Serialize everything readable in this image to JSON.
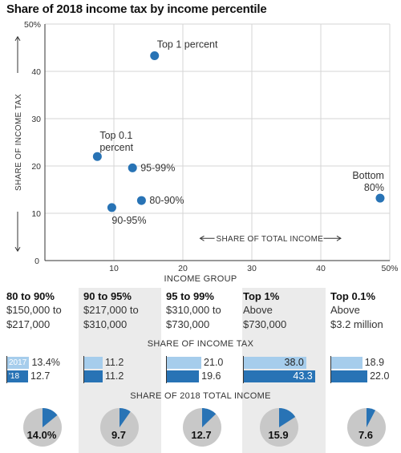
{
  "title": "Share of 2018 income tax by income percentile",
  "chart_data": {
    "type": "scatter",
    "x_axis": {
      "label": "SHARE OF TOTAL INCOME",
      "range": [
        0,
        50
      ],
      "ticks": [
        "0",
        "10",
        "20",
        "30",
        "40",
        "50%"
      ]
    },
    "y_axis": {
      "label": "SHARE OF INCOME TAX",
      "range": [
        0,
        50
      ],
      "ticks": [
        "10",
        "20",
        "30",
        "40",
        "50%"
      ],
      "zero_label": "0"
    },
    "points": [
      {
        "label": "Top 1 percent",
        "x": 15.9,
        "y": 43.3
      },
      {
        "label": "Top 0.1 percent",
        "x": 7.6,
        "y": 22.0
      },
      {
        "label": "95-99%",
        "x": 12.7,
        "y": 19.6
      },
      {
        "label": "80-90%",
        "x": 14.0,
        "y": 12.7
      },
      {
        "label": "90-95%",
        "x": 9.7,
        "y": 11.2
      },
      {
        "label": "Bottom 80%",
        "x": 48.6,
        "y": 13.2
      }
    ],
    "point_color": "#2873b5",
    "grid": "vertical-and-horizontal"
  },
  "income_group": {
    "heading": "INCOME GROUP",
    "tax_heading": "SHARE OF INCOME TAX",
    "income_heading": "SHARE OF 2018 TOTAL INCOME",
    "year_labels": [
      "2017",
      "'18"
    ],
    "colors": {
      "2017": "#a6cdec",
      "2018": "#2873b5",
      "pie_base": "#c8c8c8"
    },
    "groups": [
      {
        "name": "80 to 90%",
        "range_line1": "$150,000 to",
        "range_line2": "$217,000",
        "tax_2017": "13.4%",
        "tax_2018": "12.7",
        "tax_2017_value": 13.4,
        "tax_2018_value": 12.7,
        "income_share": "14.0%",
        "income_value": 14.0,
        "shaded": false
      },
      {
        "name": "90 to 95%",
        "range_line1": "$217,000 to",
        "range_line2": "$310,000",
        "tax_2017": "11.2",
        "tax_2018": "11.2",
        "tax_2017_value": 11.2,
        "tax_2018_value": 11.2,
        "income_share": "9.7",
        "income_value": 9.7,
        "shaded": true
      },
      {
        "name": "95 to 99%",
        "range_line1": "$310,000 to",
        "range_line2": "$730,000",
        "tax_2017": "21.0",
        "tax_2018": "19.6",
        "tax_2017_value": 21.0,
        "tax_2018_value": 19.6,
        "income_share": "12.7",
        "income_value": 12.7,
        "shaded": false
      },
      {
        "name": "Top 1%",
        "range_line1": "Above",
        "range_line2": "$730,000",
        "tax_2017": "38.0",
        "tax_2018": "43.3",
        "tax_2017_value": 38.0,
        "tax_2018_value": 43.3,
        "income_share": "15.9",
        "income_value": 15.9,
        "shaded": true
      },
      {
        "name": "Top 0.1%",
        "range_line1": "Above",
        "range_line2": "$3.2 million",
        "tax_2017": "18.9",
        "tax_2018": "22.0",
        "tax_2017_value": 18.9,
        "tax_2018_value": 22.0,
        "income_share": "7.6",
        "income_value": 7.6,
        "shaded": false
      }
    ]
  }
}
